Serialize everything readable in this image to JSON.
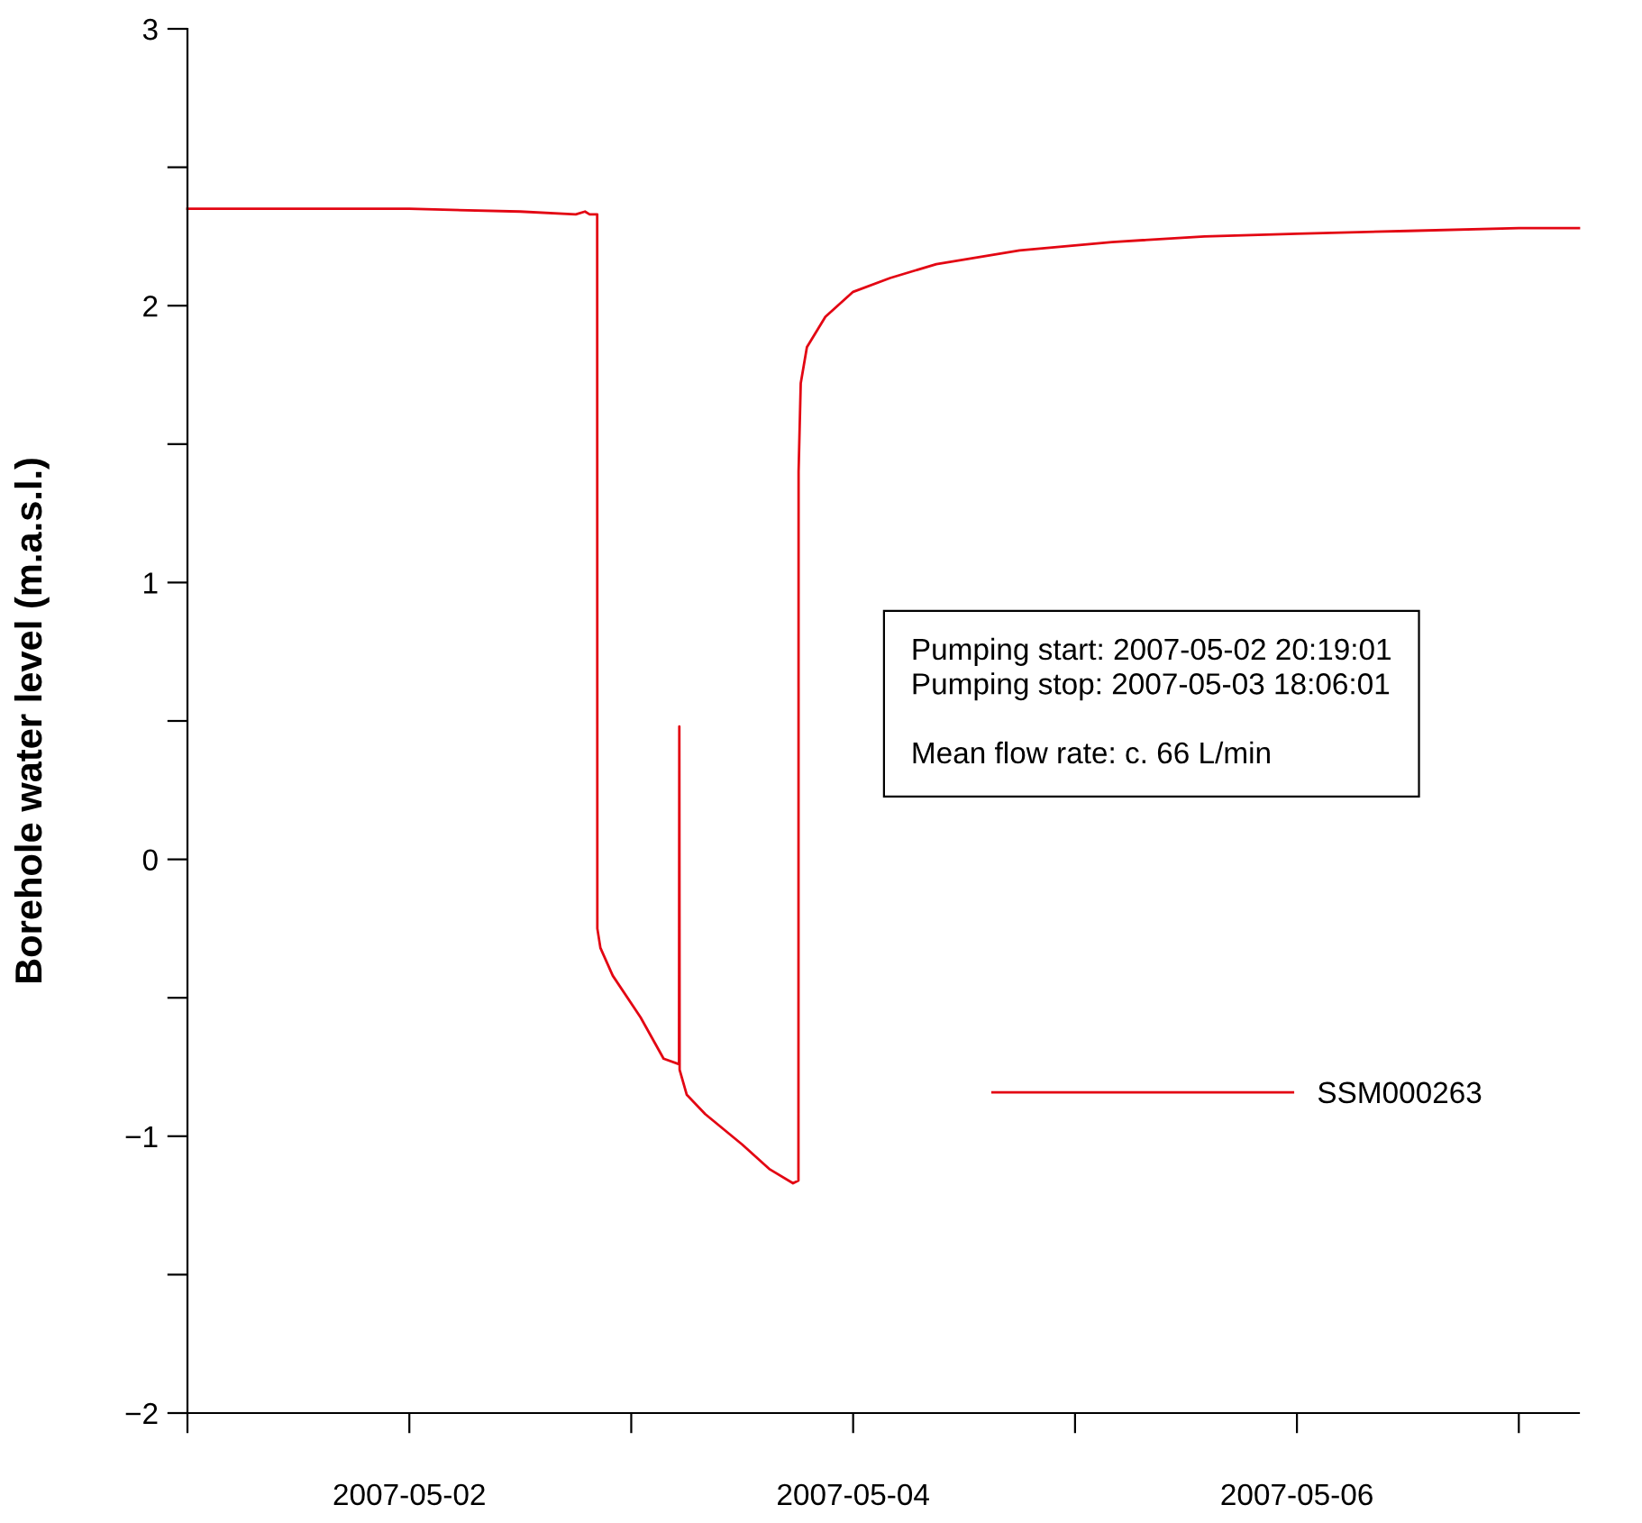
{
  "chart_data": {
    "type": "line",
    "ylabel": "Borehole water level (m.a.s.l.)",
    "x": [
      "2007-05-01T00:00",
      "2007-05-01T12:00",
      "2007-05-02T00:00",
      "2007-05-02T12:00",
      "2007-05-02T18:00",
      "2007-05-02T19:00",
      "2007-05-02T19:30",
      "2007-05-02T20:19",
      "2007-05-02T20:20",
      "2007-05-02T20:40",
      "2007-05-02T22:00",
      "2007-05-03T01:00",
      "2007-05-03T03:30",
      "2007-05-03T05:10",
      "2007-05-03T05:12",
      "2007-05-03T05:14",
      "2007-05-03T06:00",
      "2007-05-03T08:00",
      "2007-05-03T12:00",
      "2007-05-03T15:00",
      "2007-05-03T17:30",
      "2007-05-03T18:05",
      "2007-05-03T18:06",
      "2007-05-03T18:20",
      "2007-05-03T19:00",
      "2007-05-03T21:00",
      "2007-05-04T00:00",
      "2007-05-04T04:00",
      "2007-05-04T09:00",
      "2007-05-04T18:00",
      "2007-05-05T04:00",
      "2007-05-05T14:00",
      "2007-05-06T00:00",
      "2007-05-06T12:00",
      "2007-05-07T00:00",
      "2007-05-07T06:30"
    ],
    "series": [
      {
        "name": "SSM000263",
        "color": "#e30613",
        "values": [
          2.35,
          2.35,
          2.35,
          2.34,
          2.33,
          2.34,
          2.33,
          2.33,
          -0.25,
          -0.32,
          -0.42,
          -0.57,
          -0.72,
          -0.74,
          0.48,
          -0.76,
          -0.85,
          -0.92,
          -1.03,
          -1.12,
          -1.17,
          -1.16,
          1.4,
          1.72,
          1.85,
          1.96,
          2.05,
          2.1,
          2.15,
          2.2,
          2.23,
          2.25,
          2.26,
          2.27,
          2.28,
          2.28
        ]
      }
    ],
    "xlim": [
      "2007-05-01T00:00",
      "2007-05-07T06:30"
    ],
    "xticks": [
      {
        "value": "2007-05-01",
        "label": null
      },
      {
        "value": "2007-05-02",
        "label": "2007-05-02"
      },
      {
        "value": "2007-05-03",
        "label": null
      },
      {
        "value": "2007-05-04",
        "label": "2007-05-04"
      },
      {
        "value": "2007-05-05",
        "label": null
      },
      {
        "value": "2007-05-06",
        "label": "2007-05-06"
      },
      {
        "value": "2007-05-07",
        "label": null
      }
    ],
    "ylim": [
      -2,
      3
    ],
    "yticks": [
      {
        "value": -2,
        "label": "−2"
      },
      {
        "value": -1.5,
        "label": null
      },
      {
        "value": -1,
        "label": "−1"
      },
      {
        "value": -0.5,
        "label": null
      },
      0,
      {
        "value": 0.5,
        "label": null
      },
      1,
      {
        "value": 1.5,
        "label": null
      },
      2,
      {
        "value": 2.5,
        "label": null
      },
      3
    ],
    "annotations": [
      "Pumping start: 2007-05-02 20:19:01\nPumping stop: 2007-05-03 18:06:01\n\nMean flow rate: c. 66 L/min"
    ],
    "legend": "lower right",
    "grid": false,
    "marker": "none",
    "line_style": "solid"
  }
}
